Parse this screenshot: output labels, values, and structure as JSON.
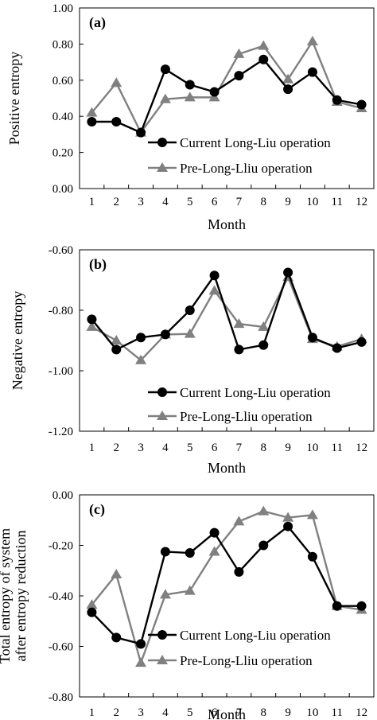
{
  "chart_data": [
    {
      "type": "line",
      "panel_label": "(a)",
      "xlabel": "Month",
      "ylabel": [
        "Positive entropy"
      ],
      "categories": [
        "1",
        "2",
        "3",
        "4",
        "5",
        "6",
        "7",
        "8",
        "9",
        "10",
        "11",
        "12"
      ],
      "ylim": [
        0.0,
        1.0
      ],
      "yticks": [
        0.0,
        0.2,
        0.4,
        0.6,
        0.8,
        1.0
      ],
      "ytick_labels": [
        "0.00",
        "0.20",
        "0.40",
        "0.60",
        "0.80",
        "1.00"
      ],
      "legend_position": "bottom-right",
      "grid": false,
      "series": [
        {
          "name": "Current Long-Liu operation",
          "color": "#000000",
          "marker": "circle",
          "values": [
            0.37,
            0.37,
            0.31,
            0.66,
            0.575,
            0.535,
            0.625,
            0.715,
            0.55,
            0.645,
            0.49,
            0.465
          ]
        },
        {
          "name": "Pre-Long-Lliu operation",
          "color": "#808080",
          "marker": "triangle",
          "values": [
            0.42,
            0.585,
            0.31,
            0.495,
            0.505,
            0.505,
            0.745,
            0.79,
            0.605,
            0.815,
            0.48,
            0.445
          ]
        }
      ]
    },
    {
      "type": "line",
      "panel_label": "(b)",
      "xlabel": "Month",
      "ylabel": [
        "Negative entropy"
      ],
      "categories": [
        "1",
        "2",
        "3",
        "4",
        "5",
        "6",
        "7",
        "8",
        "9",
        "10",
        "11",
        "12"
      ],
      "ylim": [
        -1.2,
        -0.6
      ],
      "yticks": [
        -1.2,
        -1.0,
        -0.8,
        -0.6
      ],
      "ytick_labels": [
        "-1.20",
        "-1.00",
        "-0.80",
        "-0.60"
      ],
      "legend_position": "bottom-right",
      "grid": false,
      "series": [
        {
          "name": "Current Long-Liu operation",
          "color": "#000000",
          "marker": "circle",
          "values": [
            -0.83,
            -0.93,
            -0.89,
            -0.88,
            -0.8,
            -0.685,
            -0.93,
            -0.915,
            -0.675,
            -0.89,
            -0.925,
            -0.905
          ]
        },
        {
          "name": "Pre-Long-Lliu operation",
          "color": "#808080",
          "marker": "triangle",
          "values": [
            -0.855,
            -0.9,
            -0.965,
            -0.88,
            -0.878,
            -0.735,
            -0.845,
            -0.855,
            -0.69,
            -0.895,
            -0.92,
            -0.895
          ]
        }
      ]
    },
    {
      "type": "line",
      "panel_label": "(c)",
      "xlabel": "Month",
      "ylabel": [
        "Total entropy of system",
        "after entropy reduction"
      ],
      "categories": [
        "1",
        "2",
        "3",
        "4",
        "5",
        "6",
        "7",
        "8",
        "9",
        "10",
        "11",
        "12"
      ],
      "ylim": [
        -0.8,
        0.0
      ],
      "yticks": [
        -0.8,
        -0.6,
        -0.4,
        -0.2,
        0.0
      ],
      "ytick_labels": [
        "-0.80",
        "-0.60",
        "-0.40",
        "-0.20",
        "0.00"
      ],
      "legend_position": "bottom-right",
      "grid": false,
      "series": [
        {
          "name": "Current Long-Liu operation",
          "color": "#000000",
          "marker": "circle",
          "values": [
            -0.465,
            -0.565,
            -0.59,
            -0.225,
            -0.23,
            -0.15,
            -0.305,
            -0.2,
            -0.125,
            -0.245,
            -0.44,
            -0.44
          ]
        },
        {
          "name": "Pre-Long-Lliu operation",
          "color": "#808080",
          "marker": "triangle",
          "values": [
            -0.435,
            -0.315,
            -0.665,
            -0.395,
            -0.38,
            -0.225,
            -0.105,
            -0.065,
            -0.09,
            -0.08,
            -0.44,
            -0.455
          ]
        }
      ]
    }
  ]
}
